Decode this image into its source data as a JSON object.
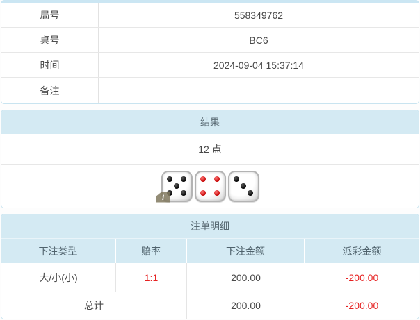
{
  "info_table": {
    "rows": [
      {
        "label": "局号",
        "value": "558349762"
      },
      {
        "label": "桌号",
        "value": "BC6"
      },
      {
        "label": "时间",
        "value": "2024-09-04 15:37:14"
      },
      {
        "label": "备注",
        "value": ""
      }
    ]
  },
  "result_section": {
    "header": "结果",
    "points": "12 点",
    "dice": [
      {
        "value": 5,
        "pip_color": "black"
      },
      {
        "value": 4,
        "pip_color": "red"
      },
      {
        "value": 3,
        "pip_color": "black"
      }
    ],
    "info_badge_label": "i"
  },
  "bets_section": {
    "header": "注单明细",
    "columns": [
      "下注类型",
      "赔率",
      "下注金额",
      "派彩金额"
    ],
    "rows": [
      {
        "type": "大/小(小)",
        "odds": "1:1",
        "amount": "200.00",
        "payout": "-200.00"
      }
    ],
    "total": {
      "label": "总计",
      "amount": "200.00",
      "payout": "-200.00"
    }
  },
  "colors": {
    "header_bg": "#d4eaf3",
    "section_border": "#c9e4f0",
    "negative_red": "#e62222",
    "text": "#4a4a4a"
  }
}
